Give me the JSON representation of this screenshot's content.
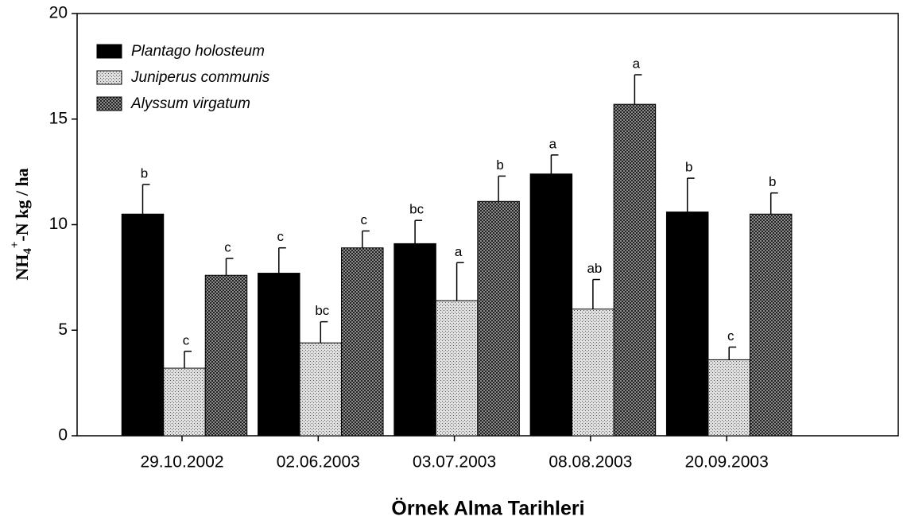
{
  "chart_data": {
    "type": "bar",
    "xlabel": "Örnek Alma Tarihleri",
    "ylabel_parts": [
      "NH",
      "4",
      "+",
      "-N kg / ha"
    ],
    "categories": [
      "29.10.2002",
      "02.06.2003",
      "03.07.2003",
      "08.08.2003",
      "20.09.2003"
    ],
    "series": [
      {
        "name": "Plantago holosteum",
        "color": "#000000",
        "pattern": "solid",
        "values": [
          10.5,
          7.7,
          9.1,
          12.4,
          10.6
        ],
        "errors": [
          1.4,
          1.2,
          1.1,
          0.9,
          1.6
        ],
        "labels": [
          "b",
          "c",
          "bc",
          "a",
          "b"
        ]
      },
      {
        "name": "Juniperus communis",
        "color": "#e0e0e0",
        "pattern": "dots",
        "values": [
          3.2,
          4.4,
          6.4,
          6.0,
          3.6
        ],
        "errors": [
          0.8,
          1.0,
          1.8,
          1.4,
          0.6
        ],
        "labels": [
          "c",
          "bc",
          "a",
          "ab",
          "c"
        ]
      },
      {
        "name": "Alyssum virgatum",
        "color": "#8c8c8c",
        "pattern": "cross",
        "values": [
          7.6,
          8.9,
          11.1,
          15.7,
          10.5
        ],
        "errors": [
          0.8,
          0.8,
          1.2,
          1.4,
          1.0
        ],
        "labels": [
          "c",
          "c",
          "b",
          "a",
          "b"
        ]
      }
    ],
    "ylim": [
      0,
      20
    ],
    "yticks": [
      0,
      5,
      10,
      15,
      20
    ],
    "legend": "upper-left"
  }
}
